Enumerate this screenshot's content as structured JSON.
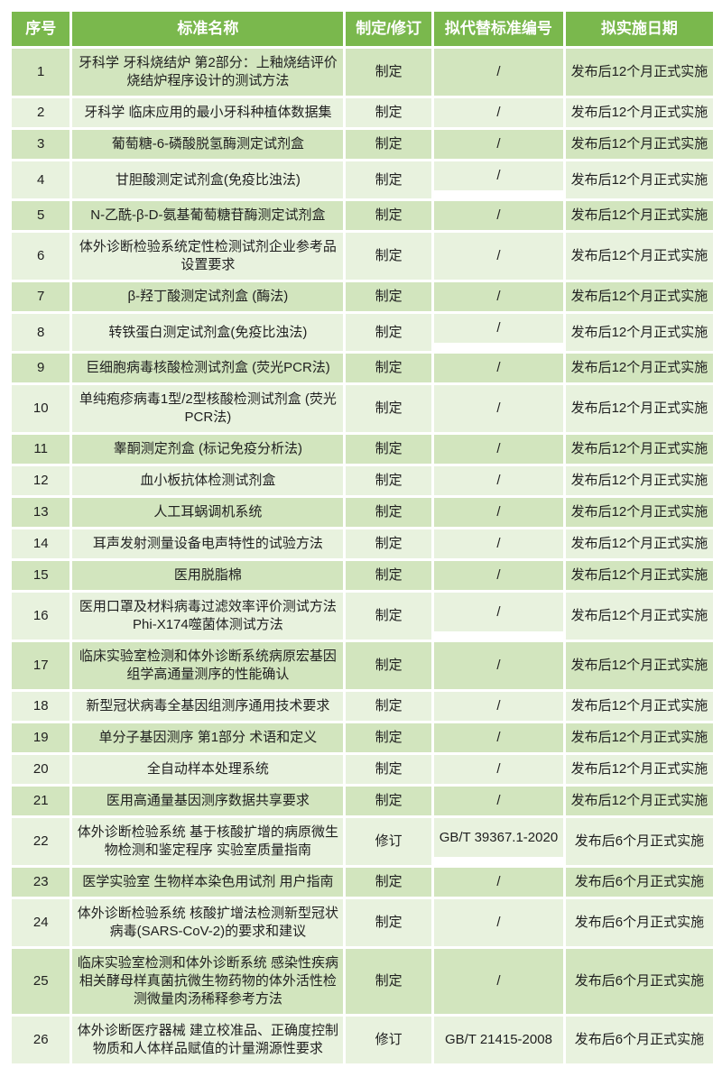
{
  "table": {
    "colors": {
      "header_bg": "#7AB84D",
      "header_text": "#FFFFFF",
      "row_odd": "#D2E5BE",
      "row_even": "#E8F2DE",
      "body_text": "#1F1F1F",
      "separator": "#FFFFFF"
    },
    "header": {
      "columns": [
        "序号",
        "标准名称",
        "制定/修订",
        "拟代替标准编号",
        "拟实施日期"
      ]
    },
    "rows": [
      {
        "no": "1",
        "name": "牙科学 牙科烧结炉 第2部分：上釉烧结评价烧结炉程序设计的测试方法",
        "action": "制定",
        "replace": "/",
        "date": "发布后12个月正式实施",
        "gap_after": false
      },
      {
        "no": "2",
        "name": "牙科学 临床应用的最小牙科种植体数据集",
        "action": "制定",
        "replace": "/",
        "date": "发布后12个月正式实施",
        "gap_after": false
      },
      {
        "no": "3",
        "name": "葡萄糖-6-磷酸脱氢酶测定试剂盒",
        "action": "制定",
        "replace": "/",
        "date": "发布后12个月正式实施",
        "gap_after": false
      },
      {
        "no": "4",
        "name": "甘胆酸测定试剂盒(免疫比浊法)",
        "action": "制定",
        "replace": "/",
        "date": "发布后12个月正式实施",
        "gap_after": true
      },
      {
        "no": "5",
        "name": "N-乙酰-β-D-氨基葡萄糖苷酶测定试剂盒",
        "action": "制定",
        "replace": "/",
        "date": "发布后12个月正式实施",
        "gap_after": false
      },
      {
        "no": "6",
        "name": "体外诊断检验系统定性检测试剂企业参考品设置要求",
        "action": "制定",
        "replace": "/",
        "date": "发布后12个月正式实施",
        "gap_after": false
      },
      {
        "no": "7",
        "name": "β-羟丁酸测定试剂盒 (酶法)",
        "action": "制定",
        "replace": "/",
        "date": "发布后12个月正式实施",
        "gap_after": false
      },
      {
        "no": "8",
        "name": "转铁蛋白测定试剂盒(免疫比浊法)",
        "action": "制定",
        "replace": "/",
        "date": "发布后12个月正式实施",
        "gap_after": true
      },
      {
        "no": "9",
        "name": "巨细胞病毒核酸检测试剂盒 (荧光PCR法)",
        "action": "制定",
        "replace": "/",
        "date": "发布后12个月正式实施",
        "gap_after": false
      },
      {
        "no": "10",
        "name": "单纯疱疹病毒1型/2型核酸检测试剂盒 (荧光PCR法)",
        "action": "制定",
        "replace": "/",
        "date": "发布后12个月正式实施",
        "gap_after": false
      },
      {
        "no": "11",
        "name": "睾酮测定剂盒 (标记免疫分析法)",
        "action": "制定",
        "replace": "/",
        "date": "发布后12个月正式实施",
        "gap_after": false
      },
      {
        "no": "12",
        "name": "血小板抗体检测试剂盒",
        "action": "制定",
        "replace": "/",
        "date": "发布后12个月正式实施",
        "gap_after": false
      },
      {
        "no": "13",
        "name": "人工耳蜗调机系统",
        "action": "制定",
        "replace": "/",
        "date": "发布后12个月正式实施",
        "gap_after": false
      },
      {
        "no": "14",
        "name": "耳声发射测量设备电声特性的试验方法",
        "action": "制定",
        "replace": "/",
        "date": "发布后12个月正式实施",
        "gap_after": false
      },
      {
        "no": "15",
        "name": "医用脱脂棉",
        "action": "制定",
        "replace": "/",
        "date": "发布后12个月正式实施",
        "gap_after": false
      },
      {
        "no": "16",
        "name": "医用口罩及材料病毒过滤效率评价测试方法 Phi-X174噬菌体测试方法",
        "action": "制定",
        "replace": "/",
        "date": "发布后12个月正式实施",
        "gap_after": true
      },
      {
        "no": "17",
        "name": "临床实验室检测和体外诊断系统病原宏基因组学高通量测序的性能确认",
        "action": "制定",
        "replace": "/",
        "date": "发布后12个月正式实施",
        "gap_after": false
      },
      {
        "no": "18",
        "name": "新型冠状病毒全基因组测序通用技术要求",
        "action": "制定",
        "replace": "/",
        "date": "发布后12个月正式实施",
        "gap_after": false
      },
      {
        "no": "19",
        "name": "单分子基因测序 第1部分 术语和定义",
        "action": "制定",
        "replace": "/",
        "date": "发布后12个月正式实施",
        "gap_after": false
      },
      {
        "no": "20",
        "name": "全自动样本处理系统",
        "action": "制定",
        "replace": "/",
        "date": "发布后12个月正式实施",
        "gap_after": false
      },
      {
        "no": "21",
        "name": "医用高通量基因测序数据共享要求",
        "action": "制定",
        "replace": "/",
        "date": "发布后12个月正式实施",
        "gap_after": false
      },
      {
        "no": "22",
        "name": "体外诊断检验系统 基于核酸扩增的病原微生物检测和鉴定程序 实验室质量指南",
        "action": "修订",
        "replace": "GB/T 39367.1-2020",
        "date": "发布后6个月正式实施",
        "gap_after": true
      },
      {
        "no": "23",
        "name": "医学实验室 生物样本染色用试剂 用户指南",
        "action": "制定",
        "replace": "/",
        "date": "发布后6个月正式实施",
        "gap_after": false
      },
      {
        "no": "24",
        "name": "体外诊断检验系统 核酸扩增法检测新型冠状病毒(SARS-CoV-2)的要求和建议",
        "action": "制定",
        "replace": "/",
        "date": "发布后6个月正式实施",
        "gap_after": false
      },
      {
        "no": "25",
        "name": "临床实验室检测和体外诊断系统 感染性疾病相关酵母样真菌抗微生物药物的体外活性检测微量肉汤稀释参考方法",
        "action": "制定",
        "replace": "/",
        "date": "发布后6个月正式实施",
        "gap_after": false
      },
      {
        "no": "26",
        "name": "体外诊断医疗器械 建立校准品、正确度控制物质和人体样品赋值的计量溯源性要求",
        "action": "修订",
        "replace": "GB/T 21415-2008",
        "date": "发布后6个月正式实施",
        "gap_after": false
      }
    ]
  }
}
